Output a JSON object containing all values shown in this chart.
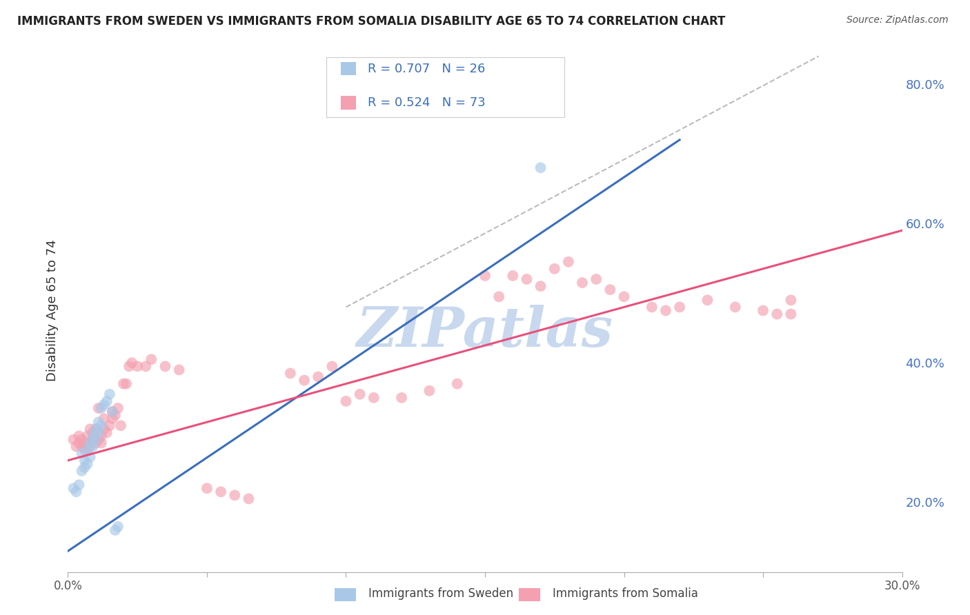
{
  "title": "IMMIGRANTS FROM SWEDEN VS IMMIGRANTS FROM SOMALIA DISABILITY AGE 65 TO 74 CORRELATION CHART",
  "source": "Source: ZipAtlas.com",
  "ylabel": "Disability Age 65 to 74",
  "xlim": [
    0.0,
    0.3
  ],
  "ylim": [
    0.1,
    0.85
  ],
  "xticks": [
    0.0,
    0.05,
    0.1,
    0.15,
    0.2,
    0.25,
    0.3
  ],
  "xticklabels": [
    "0.0%",
    "",
    "",
    "",
    "",
    "",
    "30.0%"
  ],
  "yticks": [
    0.2,
    0.4,
    0.6,
    0.8
  ],
  "yticklabels": [
    "20.0%",
    "40.0%",
    "60.0%",
    "80.0%"
  ],
  "sweden_color": "#a8c8e8",
  "somalia_color": "#f4a0b0",
  "sweden_line_color": "#3a6ebc",
  "somalia_line_color": "#e8507a",
  "ref_line_color": "#bbbbbb",
  "watermark": "ZIPatlas",
  "watermark_color": "#c8d8ee",
  "legend_text_color": "#3a6ebc",
  "sweden_scatter_x": [
    0.002,
    0.003,
    0.004,
    0.005,
    0.005,
    0.006,
    0.006,
    0.007,
    0.007,
    0.008,
    0.008,
    0.009,
    0.009,
    0.01,
    0.01,
    0.011,
    0.011,
    0.012,
    0.012,
    0.013,
    0.014,
    0.015,
    0.016,
    0.017,
    0.018,
    0.17
  ],
  "sweden_scatter_y": [
    0.22,
    0.215,
    0.225,
    0.245,
    0.27,
    0.25,
    0.26,
    0.255,
    0.275,
    0.265,
    0.285,
    0.28,
    0.295,
    0.29,
    0.305,
    0.3,
    0.315,
    0.31,
    0.335,
    0.34,
    0.345,
    0.355,
    0.33,
    0.16,
    0.165,
    0.68
  ],
  "somalia_scatter_x": [
    0.002,
    0.003,
    0.004,
    0.004,
    0.005,
    0.005,
    0.006,
    0.006,
    0.007,
    0.007,
    0.008,
    0.008,
    0.008,
    0.009,
    0.009,
    0.01,
    0.01,
    0.011,
    0.011,
    0.012,
    0.012,
    0.013,
    0.013,
    0.014,
    0.015,
    0.016,
    0.016,
    0.017,
    0.018,
    0.019,
    0.02,
    0.021,
    0.022,
    0.023,
    0.025,
    0.028,
    0.03,
    0.035,
    0.04,
    0.05,
    0.055,
    0.06,
    0.065,
    0.08,
    0.085,
    0.09,
    0.095,
    0.1,
    0.105,
    0.11,
    0.12,
    0.13,
    0.14,
    0.15,
    0.155,
    0.16,
    0.165,
    0.17,
    0.175,
    0.18,
    0.185,
    0.19,
    0.195,
    0.2,
    0.21,
    0.215,
    0.22,
    0.23,
    0.24,
    0.25,
    0.255,
    0.26,
    0.26
  ],
  "somalia_scatter_y": [
    0.29,
    0.28,
    0.285,
    0.295,
    0.28,
    0.29,
    0.275,
    0.285,
    0.275,
    0.295,
    0.285,
    0.28,
    0.305,
    0.29,
    0.3,
    0.285,
    0.305,
    0.29,
    0.335,
    0.285,
    0.295,
    0.305,
    0.32,
    0.3,
    0.31,
    0.32,
    0.33,
    0.325,
    0.335,
    0.31,
    0.37,
    0.37,
    0.395,
    0.4,
    0.395,
    0.395,
    0.405,
    0.395,
    0.39,
    0.22,
    0.215,
    0.21,
    0.205,
    0.385,
    0.375,
    0.38,
    0.395,
    0.345,
    0.355,
    0.35,
    0.35,
    0.36,
    0.37,
    0.525,
    0.495,
    0.525,
    0.52,
    0.51,
    0.535,
    0.545,
    0.515,
    0.52,
    0.505,
    0.495,
    0.48,
    0.475,
    0.48,
    0.49,
    0.48,
    0.475,
    0.47,
    0.47,
    0.49
  ],
  "sweden_line_x": [
    0.0,
    0.22
  ],
  "sweden_line_y": [
    0.13,
    0.72
  ],
  "somalia_line_x": [
    0.0,
    0.3
  ],
  "somalia_line_y": [
    0.26,
    0.59
  ],
  "ref_line_x": [
    0.1,
    0.27
  ],
  "ref_line_y": [
    0.48,
    0.84
  ]
}
